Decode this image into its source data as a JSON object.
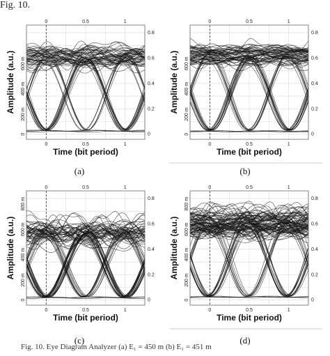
{
  "figure_label": "Fig. 10.",
  "caption": "Fig. 10. Eye Diagram Analyzer (a) E₁ = 450 m (b) E₁ = 451 m",
  "chart_data": [
    {
      "type": "line",
      "panel": "(a)",
      "xlabel": "Time (bit period)",
      "ylabel": "Amplitude (a.u.)",
      "x_ticks": [
        "0",
        "0.5",
        "1"
      ],
      "top_ticks": [
        "0",
        "0.5",
        "1"
      ],
      "y_ticks": [
        "0",
        "200 m",
        "400 m",
        "600 m"
      ],
      "right_ticks": [
        "0",
        "0.2",
        "0.4",
        "0.6",
        "0.8"
      ],
      "xlim": [
        -0.25,
        1.25
      ],
      "ylim": [
        -40,
        860
      ],
      "grid": true,
      "eye": {
        "level_one": 610,
        "level_one_spread": 60,
        "overshoot": 110,
        "level_zero": 25,
        "traces_high": 48,
        "traces_cross": 20,
        "cross_amp": 300
      }
    },
    {
      "type": "line",
      "panel": "(b)",
      "xlabel": "Time (bit period)",
      "ylabel": "Amplitude (a.u.)",
      "x_ticks": [
        "0",
        "0.5",
        "1"
      ],
      "top_ticks": [
        "0",
        "0.5",
        "1"
      ],
      "y_ticks": [
        "0",
        "200 m",
        "400 m",
        "600 m"
      ],
      "right_ticks": [
        "0",
        "0.2",
        "0.4",
        "0.6",
        "0.8"
      ],
      "xlim": [
        -0.25,
        1.25
      ],
      "ylim": [
        -40,
        860
      ],
      "grid": true,
      "eye": {
        "level_one": 620,
        "level_one_spread": 70,
        "overshoot": 90,
        "level_zero": 25,
        "traces_high": 55,
        "traces_cross": 22,
        "cross_amp": 320
      }
    },
    {
      "type": "line",
      "panel": "(c)",
      "xlabel": "Time (bit period)",
      "ylabel": "Amplitude (a.u.)",
      "x_ticks": [
        "0",
        "0.5",
        "1"
      ],
      "top_ticks": [
        "0",
        "0.5",
        "1"
      ],
      "y_ticks": [
        "0",
        "200 m",
        "400 m",
        "600 m",
        "800 m"
      ],
      "right_ticks": [
        "0",
        "0.2",
        "0.4",
        "0.6",
        "0.8"
      ],
      "xlim": [
        -0.25,
        1.25
      ],
      "ylim": [
        -40,
        860
      ],
      "grid": true,
      "eye": {
        "level_one": 530,
        "level_one_spread": 50,
        "overshoot": 160,
        "level_zero": 20,
        "traces_high": 45,
        "traces_cross": 35,
        "cross_amp": 260
      }
    },
    {
      "type": "line",
      "panel": "(d)",
      "xlabel": "Time (bit period)",
      "ylabel": "Amplitude (a.u.)",
      "x_ticks": [
        "0",
        "0.5",
        "1"
      ],
      "top_ticks": [
        "0",
        "0.5",
        "1"
      ],
      "y_ticks": [
        "0",
        "200 m",
        "400 m",
        "600 m",
        "800 m"
      ],
      "right_ticks": [
        "0",
        "0.2",
        "0.4",
        "0.6",
        "0.8"
      ],
      "xlim": [
        -0.25,
        1.25
      ],
      "ylim": [
        -40,
        860
      ],
      "grid": true,
      "eye": {
        "level_one": 610,
        "level_one_spread": 85,
        "overshoot": 120,
        "level_zero": 25,
        "traces_high": 80,
        "traces_cross": 22,
        "cross_amp": 330
      }
    }
  ]
}
